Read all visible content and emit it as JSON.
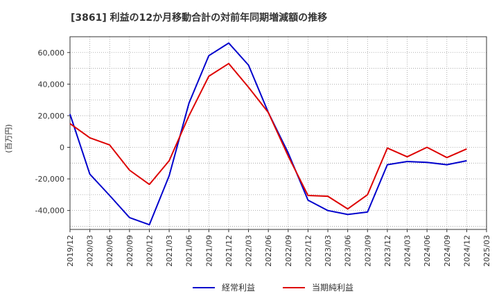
{
  "chart_data": {
    "type": "line",
    "title": "[3861]  利益の12か月移動合計の対前年同期増減額の推移",
    "ylabel": "(百万円)",
    "xlabel": "",
    "ylim": [
      -52000,
      70000
    ],
    "yticks": [
      -40000,
      -20000,
      0,
      20000,
      40000,
      60000
    ],
    "ytick_labels": [
      "-40,000",
      "-20,000",
      "0",
      "20,000",
      "40,000",
      "60,000"
    ],
    "categories": [
      "2019/12",
      "2020/03",
      "2020/06",
      "2020/09",
      "2020/12",
      "2021/03",
      "2021/06",
      "2021/09",
      "2021/12",
      "2022/03",
      "2022/06",
      "2022/09",
      "2022/12",
      "2023/03",
      "2023/06",
      "2023/09",
      "2023/12",
      "2024/03",
      "2024/06",
      "2024/09",
      "2024/12",
      "2025/03"
    ],
    "grid": true,
    "legend_position": "bottom",
    "series": [
      {
        "name": "経常利益",
        "color": "#0000cc",
        "values": [
          21000,
          -17000,
          -30500,
          -44500,
          -49000,
          -18000,
          28000,
          58000,
          66000,
          52000,
          22000,
          -3500,
          -33500,
          -40000,
          -42500,
          -41000,
          -11000,
          -9000,
          -9500,
          -11000,
          -8500,
          null
        ]
      },
      {
        "name": "当期純利益",
        "color": "#dd0000",
        "values": [
          15000,
          6000,
          1500,
          -14500,
          -23500,
          -8500,
          20000,
          45000,
          53000,
          38000,
          22000,
          -5500,
          -30500,
          -31000,
          -39000,
          -30000,
          -500,
          -6000,
          0,
          -6500,
          -1000,
          null
        ]
      }
    ]
  }
}
